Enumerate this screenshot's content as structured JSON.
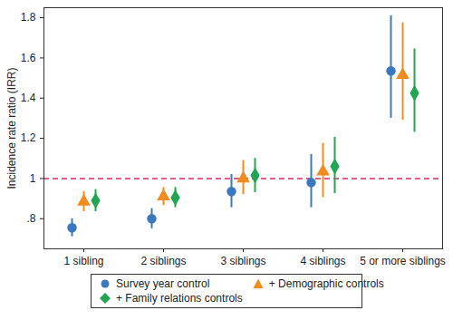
{
  "chart_data": {
    "type": "dot",
    "categories": [
      "1 sibling",
      "2 siblings",
      "3 siblings",
      "4 siblings",
      "5 or more siblings"
    ],
    "ylabel": "Incidence rate ratio (IRR)",
    "ylim": [
      0.65,
      1.85
    ],
    "yticks": [
      {
        "value": 0.8,
        "label": ".8"
      },
      1,
      1.2,
      1.4,
      1.6,
      1.8
    ],
    "grid": false,
    "legend": "bottom",
    "reference_line": {
      "value": 1,
      "color": "#d62768"
    },
    "series": [
      {
        "name": "Survey year control",
        "color": "#3a78c0",
        "marker": "circle",
        "values": [
          0.755,
          0.8,
          0.935,
          0.98,
          1.535
        ],
        "lower": [
          0.71,
          0.75,
          0.855,
          0.855,
          1.3
        ],
        "upper": [
          0.8,
          0.85,
          1.02,
          1.12,
          1.81
        ]
      },
      {
        "name": "+ Demographic controls",
        "color": "#f28c1e",
        "marker": "triangle",
        "values": [
          0.885,
          0.91,
          1.0,
          1.035,
          1.515
        ],
        "lower": [
          0.835,
          0.865,
          0.92,
          0.905,
          1.29
        ],
        "upper": [
          0.935,
          0.955,
          1.09,
          1.175,
          1.775
        ]
      },
      {
        "name": "+ Family relations controls",
        "color": "#22a555",
        "marker": "diamond",
        "values": [
          0.89,
          0.905,
          1.015,
          1.06,
          1.425
        ],
        "lower": [
          0.835,
          0.855,
          0.93,
          0.925,
          1.23
        ],
        "upper": [
          0.945,
          0.955,
          1.1,
          1.205,
          1.645
        ]
      }
    ]
  }
}
